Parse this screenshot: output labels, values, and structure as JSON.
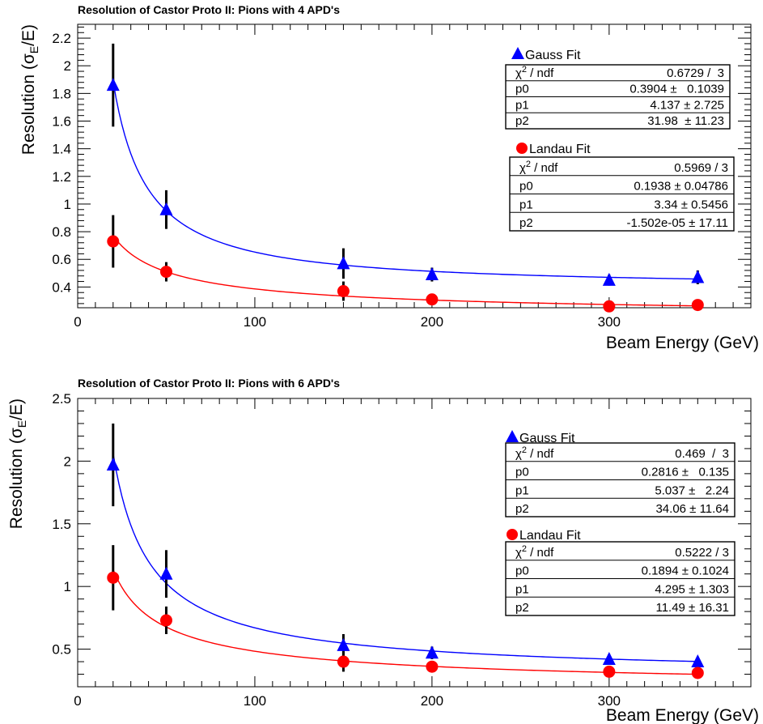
{
  "chart_data": [
    {
      "type": "scatter",
      "title": "Resolution of Castor Proto II: Pions with 4 APD's",
      "xlabel": "Beam Energy (GeV)",
      "ylabel": "Resolution (σE/E)",
      "ylabel_parts": {
        "pre": "Resolution (",
        "sigma": "σ",
        "sub": "E",
        "post": "/E)"
      },
      "xlim": [
        0,
        380
      ],
      "ylim": [
        0.25,
        2.3
      ],
      "xticks": [
        0,
        100,
        200,
        300
      ],
      "xtick_labels": [
        "0",
        "100",
        "200",
        "300"
      ],
      "yticks": [
        0.4,
        0.6,
        0.8,
        1,
        1.2,
        1.4,
        1.6,
        1.8,
        2,
        2.2
      ],
      "ytick_labels": [
        "0.4",
        "0.6",
        "0.8",
        "1",
        "1.2",
        "1.4",
        "1.6",
        "1.8",
        "2",
        "2.2"
      ],
      "series": [
        {
          "name": "Gauss Fit",
          "marker": "triangle",
          "color": "#0000ff",
          "x": [
            20,
            50,
            150,
            200,
            300,
            350
          ],
          "y": [
            1.86,
            0.96,
            0.57,
            0.49,
            0.45,
            0.47
          ],
          "yerr": [
            0.3,
            0.14,
            0.11,
            0.05,
            0.04,
            0.05
          ],
          "fit": {
            "p0": 0.3904,
            "p1": 4.137,
            "p2": 31.98
          },
          "stats": [
            {
              "label": "χ² / ndf",
              "value": "0.6729 /  3"
            },
            {
              "label": "p0",
              "value": "0.3904 ±   0.1039"
            },
            {
              "label": "p1",
              "value": "4.137 ± 2.725"
            },
            {
              "label": "p2",
              "value": "31.98  ± 11.23"
            }
          ]
        },
        {
          "name": "Landau Fit",
          "marker": "circle",
          "color": "#ff0000",
          "x": [
            20,
            50,
            150,
            200,
            300,
            350
          ],
          "y": [
            0.73,
            0.51,
            0.37,
            0.31,
            0.26,
            0.27
          ],
          "yerr": [
            0.19,
            0.07,
            0.07,
            0.03,
            0.02,
            0.02
          ],
          "fit": {
            "p0": 0.1938,
            "p1": 3.34,
            "p2": 0
          },
          "stats": [
            {
              "label": "χ² / ndf",
              "value": "0.5969 / 3"
            },
            {
              "label": "p0",
              "value": "0.1938 ± 0.04786"
            },
            {
              "label": "p1",
              "value": "3.34 ± 0.5456"
            },
            {
              "label": "p2",
              "value": "-1.502e-05 ± 17.11"
            }
          ]
        }
      ]
    },
    {
      "type": "scatter",
      "title": "Resolution of Castor Proto II: Pions with 6 APD's",
      "xlabel": "Beam Energy (GeV)",
      "ylabel": "Resolution (σE/E)",
      "ylabel_parts": {
        "pre": "Resolution (",
        "sigma": "σ",
        "sub": "E",
        "post": "/E)"
      },
      "xlim": [
        0,
        380
      ],
      "ylim": [
        0.2,
        2.5
      ],
      "xticks": [
        0,
        100,
        200,
        300
      ],
      "xtick_labels": [
        "0",
        "100",
        "200",
        "300"
      ],
      "yticks": [
        0.5,
        1,
        1.5,
        2,
        2.5
      ],
      "ytick_labels": [
        "0.5",
        "1",
        "1.5",
        "2",
        "2.5"
      ],
      "series": [
        {
          "name": "Gauss Fit",
          "marker": "triangle",
          "color": "#0000ff",
          "x": [
            20,
            50,
            150,
            200,
            300,
            350
          ],
          "y": [
            1.97,
            1.1,
            0.53,
            0.47,
            0.42,
            0.4
          ],
          "yerr": [
            0.33,
            0.19,
            0.09,
            0.05,
            0.04,
            0.04
          ],
          "fit": {
            "p0": 0.2816,
            "p1": 5.037,
            "p2": 34.06
          },
          "stats": [
            {
              "label": "χ² / ndf",
              "value": "0.469  /  3"
            },
            {
              "label": "p0",
              "value": "0.2816 ±   0.135"
            },
            {
              "label": "p1",
              "value": "5.037 ±   2.24"
            },
            {
              "label": "p2",
              "value": "34.06 ± 11.64"
            }
          ]
        },
        {
          "name": "Landau Fit",
          "marker": "circle",
          "color": "#ff0000",
          "x": [
            20,
            50,
            150,
            200,
            300,
            350
          ],
          "y": [
            1.07,
            0.73,
            0.4,
            0.36,
            0.32,
            0.31
          ],
          "yerr": [
            0.26,
            0.11,
            0.08,
            0.03,
            0.03,
            0.02
          ],
          "fit": {
            "p0": 0.1894,
            "p1": 4.295,
            "p2": 11.49
          },
          "stats": [
            {
              "label": "χ² / ndf",
              "value": "0.5222 / 3"
            },
            {
              "label": "p0",
              "value": "0.1894 ± 0.1024"
            },
            {
              "label": "p1",
              "value": "4.295 ± 1.303"
            },
            {
              "label": "p2",
              "value": "11.49 ± 16.31"
            }
          ]
        }
      ]
    }
  ]
}
